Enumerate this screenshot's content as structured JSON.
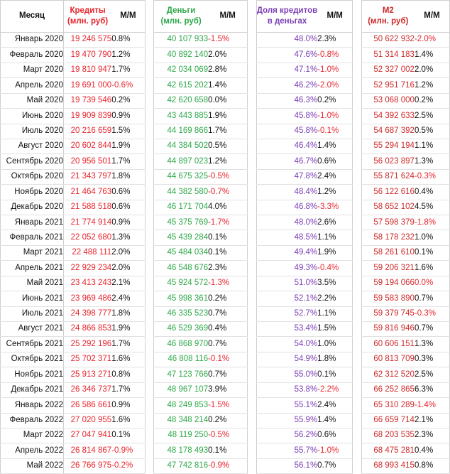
{
  "colors": {
    "credits": "#e8252d",
    "money": "#2fa84a",
    "share": "#7b3fb6",
    "m2": "#cf2a2a",
    "negative": "#e8252d",
    "positive": "#111111"
  },
  "headers": {
    "month": "Месяц",
    "credits_1": "Кредиты",
    "credits_2": "(млн. руб)",
    "mm": "М/М",
    "money_1": "Деньги",
    "money_2": "(млн. руб)",
    "share_1": "Доля кредитов",
    "share_2": "в деньгах",
    "m2_1": "М2",
    "m2_2": "(млн. руб)"
  },
  "rows": [
    {
      "month": "Январь 2020",
      "credits": "19 246 575",
      "credits_mm": "0.8%",
      "money": "40 107 933",
      "money_mm": "-1.5%",
      "share": "48.0%",
      "share_mm": "2.3%",
      "m2": "50 622 932",
      "m2_mm": "-2.0%"
    },
    {
      "month": "Февраль 2020",
      "credits": "19 470 790",
      "credits_mm": "1.2%",
      "money": "40 892 140",
      "money_mm": "2.0%",
      "share": "47.6%",
      "share_mm": "-0.8%",
      "m2": "51 314 183",
      "m2_mm": "1.4%"
    },
    {
      "month": "Март 2020",
      "credits": "19 810 947",
      "credits_mm": "1.7%",
      "money": "42 034 069",
      "money_mm": "2.8%",
      "share": "47.1%",
      "share_mm": "-1.0%",
      "m2": "52 327 002",
      "m2_mm": "2.0%"
    },
    {
      "month": "Апрель 2020",
      "credits": "19 691 000",
      "credits_mm": "-0.6%",
      "money": "42 615 202",
      "money_mm": "1.4%",
      "share": "46.2%",
      "share_mm": "-2.0%",
      "m2": "52 951 716",
      "m2_mm": "1.2%"
    },
    {
      "month": "Май 2020",
      "credits": "19 739 546",
      "credits_mm": "0.2%",
      "money": "42 620 658",
      "money_mm": "0.0%",
      "share": "46.3%",
      "share_mm": "0.2%",
      "m2": "53 068 000",
      "m2_mm": "0.2%"
    },
    {
      "month": "Июнь 2020",
      "credits": "19 909 839",
      "credits_mm": "0.9%",
      "money": "43 443 885",
      "money_mm": "1.9%",
      "share": "45.8%",
      "share_mm": "-1.0%",
      "m2": "54 392 633",
      "m2_mm": "2.5%"
    },
    {
      "month": "Июль 2020",
      "credits": "20 216 659",
      "credits_mm": "1.5%",
      "money": "44 169 866",
      "money_mm": "1.7%",
      "share": "45.8%",
      "share_mm": "-0.1%",
      "m2": "54 687 392",
      "m2_mm": "0.5%"
    },
    {
      "month": "Август 2020",
      "credits": "20 602 844",
      "credits_mm": "1.9%",
      "money": "44 384 502",
      "money_mm": "0.5%",
      "share": "46.4%",
      "share_mm": "1.4%",
      "m2": "55 294 194",
      "m2_mm": "1.1%"
    },
    {
      "month": "Сентябрь 2020",
      "credits": "20 956 501",
      "credits_mm": "1.7%",
      "money": "44 897 023",
      "money_mm": "1.2%",
      "share": "46.7%",
      "share_mm": "0.6%",
      "m2": "56 023 897",
      "m2_mm": "1.3%"
    },
    {
      "month": "Октябрь 2020",
      "credits": "21 343 797",
      "credits_mm": "1.8%",
      "money": "44 675 325",
      "money_mm": "-0.5%",
      "share": "47.8%",
      "share_mm": "2.4%",
      "m2": "55 871 624",
      "m2_mm": "-0.3%"
    },
    {
      "month": "Ноябрь 2020",
      "credits": "21 464 763",
      "credits_mm": "0.6%",
      "money": "44 382 580",
      "money_mm": "-0.7%",
      "share": "48.4%",
      "share_mm": "1.2%",
      "m2": "56 122 616",
      "m2_mm": "0.4%"
    },
    {
      "month": "Декабрь 2020",
      "credits": "21 588 518",
      "credits_mm": "0.6%",
      "money": "46 171 704",
      "money_mm": "4.0%",
      "share": "46.8%",
      "share_mm": "-3.3%",
      "m2": "58 652 102",
      "m2_mm": "4.5%"
    },
    {
      "month": "Январь 2021",
      "credits": "21 774 914",
      "credits_mm": "0.9%",
      "money": "45 375 769",
      "money_mm": "-1.7%",
      "share": "48.0%",
      "share_mm": "2.6%",
      "m2": "57 598 379",
      "m2_mm": "-1.8%"
    },
    {
      "month": "Февраль 2021",
      "credits": "22 052 680",
      "credits_mm": "1.3%",
      "money": "45 439 284",
      "money_mm": "0.1%",
      "share": "48.5%",
      "share_mm": "1.1%",
      "m2": "58 178 232",
      "m2_mm": "1.0%"
    },
    {
      "month": "Март 2021",
      "credits": "22 488 111",
      "credits_mm": "2.0%",
      "money": "45 484 034",
      "money_mm": "0.1%",
      "share": "49.4%",
      "share_mm": "1.9%",
      "m2": "58 261 610",
      "m2_mm": "0.1%"
    },
    {
      "month": "Апрель 2021",
      "credits": "22 929 234",
      "credits_mm": "2.0%",
      "money": "46 548 676",
      "money_mm": "2.3%",
      "share": "49.3%",
      "share_mm": "-0.4%",
      "m2": "59 206 321",
      "m2_mm": "1.6%"
    },
    {
      "month": "Май 2021",
      "credits": "23 413 243",
      "credits_mm": "2.1%",
      "money": "45 924 572",
      "money_mm": "-1.3%",
      "share": "51.0%",
      "share_mm": "3.5%",
      "m2": "59 194 066",
      "m2_mm": "0.0%"
    },
    {
      "month": "Июнь 2021",
      "credits": "23 969 486",
      "credits_mm": "2.4%",
      "money": "45 998 361",
      "money_mm": "0.2%",
      "share": "52.1%",
      "share_mm": "2.2%",
      "m2": "59 583 890",
      "m2_mm": "0.7%"
    },
    {
      "month": "Июль 2021",
      "credits": "24 398 777",
      "credits_mm": "1.8%",
      "money": "46 335 523",
      "money_mm": "0.7%",
      "share": "52.7%",
      "share_mm": "1.1%",
      "m2": "59 379 745",
      "m2_mm": "-0.3%"
    },
    {
      "month": "Август 2021",
      "credits": "24 866 853",
      "credits_mm": "1.9%",
      "money": "46 529 369",
      "money_mm": "0.4%",
      "share": "53.4%",
      "share_mm": "1.5%",
      "m2": "59 816 946",
      "m2_mm": "0.7%"
    },
    {
      "month": "Сентябрь 2021",
      "credits": "25 292 196",
      "credits_mm": "1.7%",
      "money": "46 868 970",
      "money_mm": "0.7%",
      "share": "54.0%",
      "share_mm": "1.0%",
      "m2": "60 606 151",
      "m2_mm": "1.3%"
    },
    {
      "month": "Октябрь 2021",
      "credits": "25 702 371",
      "credits_mm": "1.6%",
      "money": "46 808 116",
      "money_mm": "-0.1%",
      "share": "54.9%",
      "share_mm": "1.8%",
      "m2": "60 813 709",
      "m2_mm": "0.3%"
    },
    {
      "month": "Ноябрь 2021",
      "credits": "25 913 271",
      "credits_mm": "0.8%",
      "money": "47 123 766",
      "money_mm": "0.7%",
      "share": "55.0%",
      "share_mm": "0.1%",
      "m2": "62 312 520",
      "m2_mm": "2.5%"
    },
    {
      "month": "Декабрь 2021",
      "credits": "26 346 737",
      "credits_mm": "1.7%",
      "money": "48 967 107",
      "money_mm": "3.9%",
      "share": "53.8%",
      "share_mm": "-2.2%",
      "m2": "66 252 865",
      "m2_mm": "6.3%"
    },
    {
      "month": "Январь 2022",
      "credits": "26 586 661",
      "credits_mm": "0.9%",
      "money": "48 249 853",
      "money_mm": "-1.5%",
      "share": "55.1%",
      "share_mm": "2.4%",
      "m2": "65 310 289",
      "m2_mm": "-1.4%"
    },
    {
      "month": "Февраль 2022",
      "credits": "27 020 955",
      "credits_mm": "1.6%",
      "money": "48 348 214",
      "money_mm": "0.2%",
      "share": "55.9%",
      "share_mm": "1.4%",
      "m2": "66 659 714",
      "m2_mm": "2.1%"
    },
    {
      "month": "Март 2022",
      "credits": "27 047 941",
      "credits_mm": "0.1%",
      "money": "48 119 250",
      "money_mm": "-0.5%",
      "share": "56.2%",
      "share_mm": "0.6%",
      "m2": "68 203 535",
      "m2_mm": "2.3%"
    },
    {
      "month": "Апрель 2022",
      "credits": "26 814 867",
      "credits_mm": "-0.9%",
      "money": "48 178 493",
      "money_mm": "0.1%",
      "share": "55.7%",
      "share_mm": "-1.0%",
      "m2": "68 475 281",
      "m2_mm": "0.4%"
    },
    {
      "month": "Май 2022",
      "credits": "26 766 975",
      "credits_mm": "-0.2%",
      "money": "47 742 816",
      "money_mm": "-0.9%",
      "share": "56.1%",
      "share_mm": "0.7%",
      "m2": "68 993 415",
      "m2_mm": "0.8%"
    }
  ]
}
